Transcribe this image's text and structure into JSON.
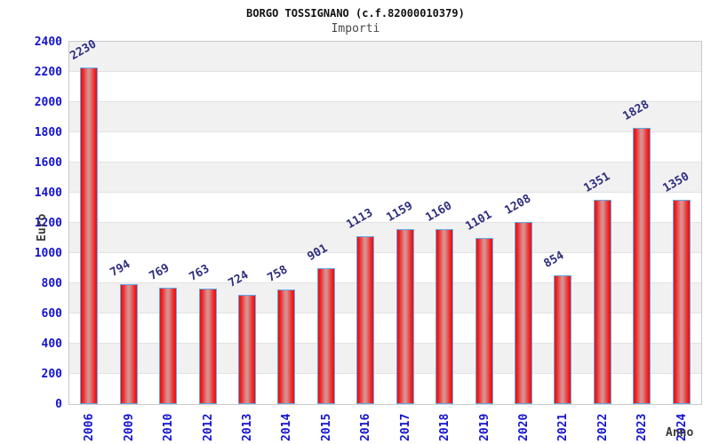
{
  "chart_data": {
    "type": "bar",
    "title": "BORGO TOSSIGNANO (c.f.82000010379)",
    "subtitle": "Importi",
    "xlabel": "Anno",
    "ylabel": "Euro",
    "categories": [
      "2006",
      "2009",
      "2010",
      "2012",
      "2013",
      "2014",
      "2015",
      "2016",
      "2017",
      "2018",
      "2019",
      "2020",
      "2021",
      "2022",
      "2023",
      "2024"
    ],
    "values": [
      2230,
      794,
      769,
      763,
      724,
      758,
      901,
      1113,
      1159,
      1160,
      1101,
      1208,
      854,
      1351,
      1828,
      1350
    ],
    "ylim": [
      0,
      2400
    ],
    "ytick_step": 200,
    "y_ticks": [
      0,
      200,
      400,
      600,
      800,
      1000,
      1200,
      1400,
      1600,
      1800,
      2000,
      2200,
      2400
    ],
    "grid": true,
    "legend": "none",
    "colors": {
      "bar_edge": "#e31212",
      "bar_highlight": "#d98f8f",
      "bar_border": "#64a8e8",
      "tick_label": "#1414cf",
      "value_label": "#2e2e7f",
      "band_gray": "#f2f1f1",
      "band_white": "#ffffff",
      "gridline": "#e2e2e2",
      "plot_border": "#c9c9c9",
      "title_color": "#111111",
      "subtitle_color": "#4a4a4a"
    }
  }
}
